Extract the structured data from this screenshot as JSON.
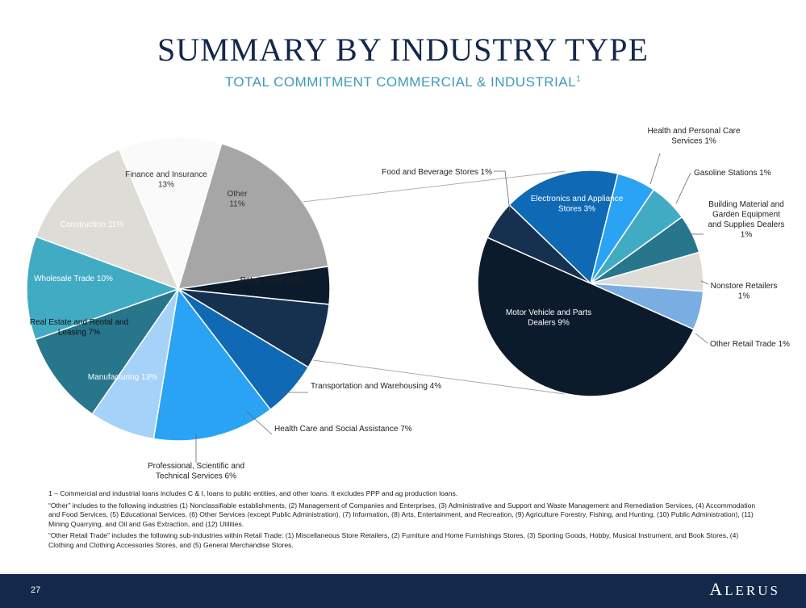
{
  "slide": {
    "title": "SUMMARY BY INDUSTRY TYPE",
    "subtitle": "TOTAL COMMITMENT COMMERCIAL & INDUSTRIAL",
    "subtitle_sup": "1",
    "page_number": "27",
    "logo_first": "A",
    "logo_rest": "LERUS"
  },
  "footnotes": [
    "1 – Commercial and industrial loans includes C & I, loans to public entities, and other loans. It excludes PPP and ag production loans.",
    "“Other” includes to the following industries (1) Nonclassifiable establishments, (2) Management of Companies and Enterprises, (3) Administrative and Support and Waste Management and Remediation Services, (4) Accommodation and Food Services, (5) Educational Services, (6) Other Services (except Public Administration), (7) Information, (8) Arts, Entertainment, and Recreation, (9) Agriculture Forestry, Fishing, and Hunting, (10) Public Administration), (11) Mining Quarrying, and Oil and Gas Extraction, and (12) Utilities.",
    "“Other Retail Trade” includes the following sub-industries within Retail Trade: (1) Miscellaneous Store Retailers, (2) Furniture and Home Furnishings Stores, (3) Sporting Goods, Hobby, Musical Instrument, and Book Stores, (4) Clothing and Clothing Accessories Stores, and (5) General Merchandise Stores."
  ],
  "chart_data": [
    {
      "type": "pie",
      "slices": [
        {
          "label": "Other\n11%",
          "value": 11,
          "color": "#fafafa"
        },
        {
          "label": "Retail Trade 18%",
          "value": 18,
          "color": "#a6a6a6"
        },
        {
          "label": "Transportation and Warehousing 4%",
          "value": 4,
          "color": "#0b1b2c"
        },
        {
          "label": "Health Care and Social Assistance 7%",
          "value": 7,
          "color": "#16314f"
        },
        {
          "label": "Professional, Scientific and\nTechnical Services 6%",
          "value": 6,
          "color": "#0f69b4"
        },
        {
          "label": "Manufacturing 13%",
          "value": 13,
          "color": "#2aa3f5"
        },
        {
          "label": "Real Estate and Rental and\nLeasing 7%",
          "value": 7,
          "color": "#a4d2f8"
        },
        {
          "label": "Wholesale Trade 10%",
          "value": 10,
          "color": "#27768c"
        },
        {
          "label": "Construction 11%",
          "value": 11,
          "color": "#41abc4"
        },
        {
          "label": "Finance and Insurance\n13%",
          "value": 13,
          "color": "#dddcd7"
        }
      ]
    },
    {
      "type": "pie",
      "slices": [
        {
          "label": "Electronics and Appliance\nStores 3%",
          "value": 3,
          "color": "#0f69b4"
        },
        {
          "label": "Health and Personal Care\nServices 1%",
          "value": 1,
          "color": "#2aa3f5"
        },
        {
          "label": "Gasoline Stations 1%",
          "value": 1,
          "color": "#41abc4"
        },
        {
          "label": "Building Material and\nGarden Equipment\nand Supplies Dealers\n1%",
          "value": 1,
          "color": "#27768c"
        },
        {
          "label": "Nonstore Retailers\n1%",
          "value": 1,
          "color": "#dddcd7"
        },
        {
          "label": "Other Retail Trade 1%",
          "value": 1,
          "color": "#7aaee3"
        },
        {
          "label": "Motor Vehicle and Parts\nDealers 9%",
          "value": 9,
          "color": "#0b1b2c"
        },
        {
          "label": "Food and Beverage Stores 1%",
          "value": 1,
          "color": "#16314f"
        }
      ]
    }
  ]
}
